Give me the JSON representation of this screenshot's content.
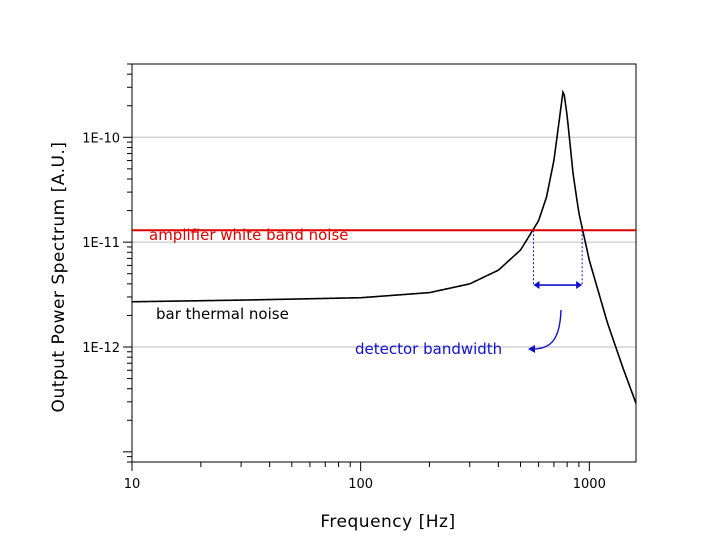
{
  "chart_data": {
    "type": "line",
    "xlabel": "Frequency  [Hz]",
    "ylabel": "Output Power Spectrum  [A.U.]",
    "xscale": "log",
    "yscale": "log",
    "xlim": [
      10,
      1600
    ],
    "ylim": [
      8e-14,
      5e-10
    ],
    "x_tick_labels": [
      {
        "value": 10,
        "label": "10"
      },
      {
        "value": 100,
        "label": "100"
      },
      {
        "value": 1000,
        "label": "1000"
      }
    ],
    "y_tick_labels": [
      {
        "value": 1e-10,
        "label": "1E-10"
      },
      {
        "value": 1e-11,
        "label": "1E-11"
      },
      {
        "value": 1e-12,
        "label": "1E-12"
      }
    ],
    "grid": "horizontal at labeled decades",
    "series": [
      {
        "name": "bar thermal noise",
        "kind": "resonance",
        "color": "#000000",
        "x": [
          10,
          30,
          100,
          200,
          300,
          400,
          500,
          600,
          650,
          700,
          740,
          770,
          800,
          850,
          900,
          1000,
          1200,
          1400,
          1600
        ],
        "y": [
          2.7e-12,
          2.8e-12,
          2.95e-12,
          3.3e-12,
          4e-12,
          5.4e-12,
          8.4e-12,
          1.6e-11,
          2.7e-11,
          6e-11,
          1.5e-10,
          2.9e-10,
          1.6e-10,
          4.4e-11,
          1.9e-11,
          6.7e-12,
          1.7e-12,
          6.4e-13,
          2.9e-13
        ]
      },
      {
        "name": "amplifier white band noise",
        "kind": "constant",
        "color": "#e00000",
        "y": 1.3e-11
      }
    ],
    "annotations": [
      {
        "text": "amplifier white band noise",
        "color": "#e00000"
      },
      {
        "text": "bar thermal noise",
        "color": "#000000"
      },
      {
        "text": "detector bandwidth",
        "color": "#1010d0"
      }
    ],
    "detector_bandwidth_hz": [
      570,
      930
    ]
  }
}
